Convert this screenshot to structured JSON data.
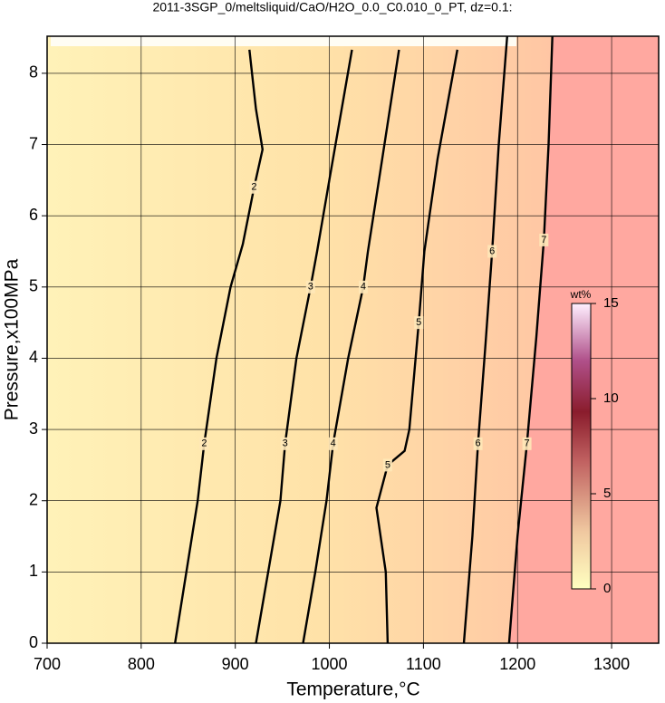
{
  "chart_data": {
    "type": "contour",
    "title": "2011-3SGP_0/meltsliquid/CaO/H2O_0.0_C0.010_0_PT, dz=0.1:",
    "x_label": "Temperature,°C",
    "y_label": "Pressure,x100MPa",
    "xlim": [
      700,
      1350
    ],
    "ylim": [
      0,
      8.52
    ],
    "xticks": [
      700,
      800,
      900,
      1000,
      1100,
      1200,
      1300
    ],
    "yticks": [
      0,
      1,
      2,
      3,
      4,
      5,
      6,
      7,
      8
    ],
    "grid": true,
    "line_color": "#000000",
    "contours": [
      {
        "level": 2,
        "x": [
          836,
          848,
          860,
          867,
          880,
          895,
          908,
          920,
          929,
          922,
          915
        ],
        "y": [
          0,
          1,
          2,
          2.8,
          4,
          5,
          5.6,
          6.4,
          6.93,
          7.5,
          8.33
        ]
      },
      {
        "level": 3,
        "x": [
          922,
          935,
          948,
          953,
          965,
          980,
          987,
          1000,
          1024
        ],
        "y": [
          0,
          1,
          2,
          2.8,
          4,
          5,
          5.5,
          6.5,
          8.33
        ]
      },
      {
        "level": 4,
        "x": [
          972,
          985,
          997,
          1004,
          1020,
          1036,
          1041,
          1055,
          1074
        ],
        "y": [
          0,
          1,
          2,
          2.8,
          4,
          5,
          5.5,
          6.7,
          8.33
        ]
      },
      {
        "level": 5,
        "x": [
          1062,
          1060,
          1050,
          1062,
          1080,
          1085,
          1095,
          1101,
          1115,
          1136
        ],
        "y": [
          0,
          1,
          1.9,
          2.5,
          2.7,
          3,
          4.5,
          5.5,
          6.8,
          8.33
        ]
      },
      {
        "level": 6,
        "x": [
          1143,
          1152,
          1158,
          1166,
          1173,
          1180,
          1189
        ],
        "y": [
          0,
          1.5,
          2.8,
          4.2,
          5.5,
          7,
          8.52
        ]
      },
      {
        "level": 7,
        "x": [
          1191,
          1200,
          1210,
          1220,
          1228,
          1233,
          1237
        ],
        "y": [
          0,
          1.5,
          2.8,
          4.3,
          5.66,
          7,
          8.52
        ]
      }
    ],
    "colorbar": {
      "label": "wt%",
      "lim": [
        0,
        15
      ],
      "ticks": [
        0,
        5,
        10,
        15
      ]
    }
  }
}
